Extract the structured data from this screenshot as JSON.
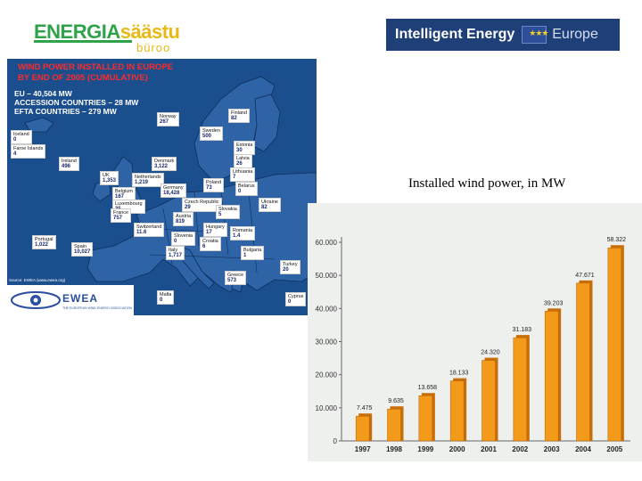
{
  "logos": {
    "left": {
      "part1": "ENERGIA",
      "part2": "säästu",
      "sub": "büroo"
    },
    "right": {
      "text": "Intelligent Energy",
      "suffix": "Europe",
      "flag_icon": "eu-flag-icon"
    }
  },
  "map": {
    "title_line1": "WIND POWER INSTALLED IN EUROPE",
    "title_line2": "BY END OF 2005 (CUMULATIVE)",
    "totals": [
      "EU – 40,504 MW",
      "ACCESSION COUNTRIES – 28 MW",
      "EFTA COUNTRIES – 279 MW"
    ],
    "source": "Source: EWEA (www.ewea.org)",
    "ewea_logo": "EWEA",
    "ewea_sub": "THE EUROPEAN WIND ENERGY ASSOCIATION",
    "countries": [
      {
        "name": "Iceland",
        "value": "0"
      },
      {
        "name": "Faroe Islands",
        "value": "4"
      },
      {
        "name": "Norway",
        "value": "267"
      },
      {
        "name": "Sweden",
        "value": "500"
      },
      {
        "name": "Finland",
        "value": "82"
      },
      {
        "name": "Estonia",
        "value": "30"
      },
      {
        "name": "Latvia",
        "value": "26"
      },
      {
        "name": "Lithuania",
        "value": "7"
      },
      {
        "name": "Ireland",
        "value": "496"
      },
      {
        "name": "Denmark",
        "value": "3,122"
      },
      {
        "name": "UK",
        "value": "1,353"
      },
      {
        "name": "Netherlands",
        "value": "1,219"
      },
      {
        "name": "Belgium",
        "value": "167"
      },
      {
        "name": "Luxembourg",
        "value": "35"
      },
      {
        "name": "Germany",
        "value": "18,428"
      },
      {
        "name": "Poland",
        "value": "73"
      },
      {
        "name": "Belarus",
        "value": "0"
      },
      {
        "name": "Ukraine",
        "value": "82"
      },
      {
        "name": "Czech Republic",
        "value": "29"
      },
      {
        "name": "Slovakia",
        "value": "5"
      },
      {
        "name": "France",
        "value": "757"
      },
      {
        "name": "Switzerland",
        "value": "11.6"
      },
      {
        "name": "Austria",
        "value": "819"
      },
      {
        "name": "Hungary",
        "value": "17"
      },
      {
        "name": "Romania",
        "value": "1.4"
      },
      {
        "name": "Slovenia",
        "value": "0"
      },
      {
        "name": "Croatia",
        "value": "6"
      },
      {
        "name": "Bulgaria",
        "value": "1"
      },
      {
        "name": "Portugal",
        "value": "1,022"
      },
      {
        "name": "Spain",
        "value": "10,027"
      },
      {
        "name": "Italy",
        "value": "1,717"
      },
      {
        "name": "Greece",
        "value": "573"
      },
      {
        "name": "Turkey",
        "value": "20"
      },
      {
        "name": "Malta",
        "value": "0"
      },
      {
        "name": "Cyprus",
        "value": "0"
      }
    ]
  },
  "caption": "Installed wind power, in MW",
  "colors": {
    "bar": "#f39a1a",
    "bar_dark": "#c86e08",
    "map_bg": "#1b4e8d",
    "land": "#2e63a6"
  },
  "chart_data": {
    "type": "bar",
    "categories": [
      "1997",
      "1998",
      "1999",
      "2000",
      "2001",
      "2002",
      "2003",
      "2004",
      "2005"
    ],
    "values": [
      7475,
      9635,
      13658,
      18133,
      24320,
      31183,
      39203,
      47671,
      58322
    ],
    "data_labels": [
      "7.475",
      "9.635",
      "13.658",
      "18.133",
      "24.320",
      "31.183",
      "39.203",
      "47.671",
      "58.322"
    ],
    "yticks": [
      "0",
      "10.000",
      "20.000",
      "30.000",
      "40.000",
      "50.000",
      "60.000"
    ],
    "ylim": [
      0,
      60000
    ],
    "title": "",
    "xlabel": "",
    "ylabel": "",
    "grid": false,
    "legend": "none"
  }
}
